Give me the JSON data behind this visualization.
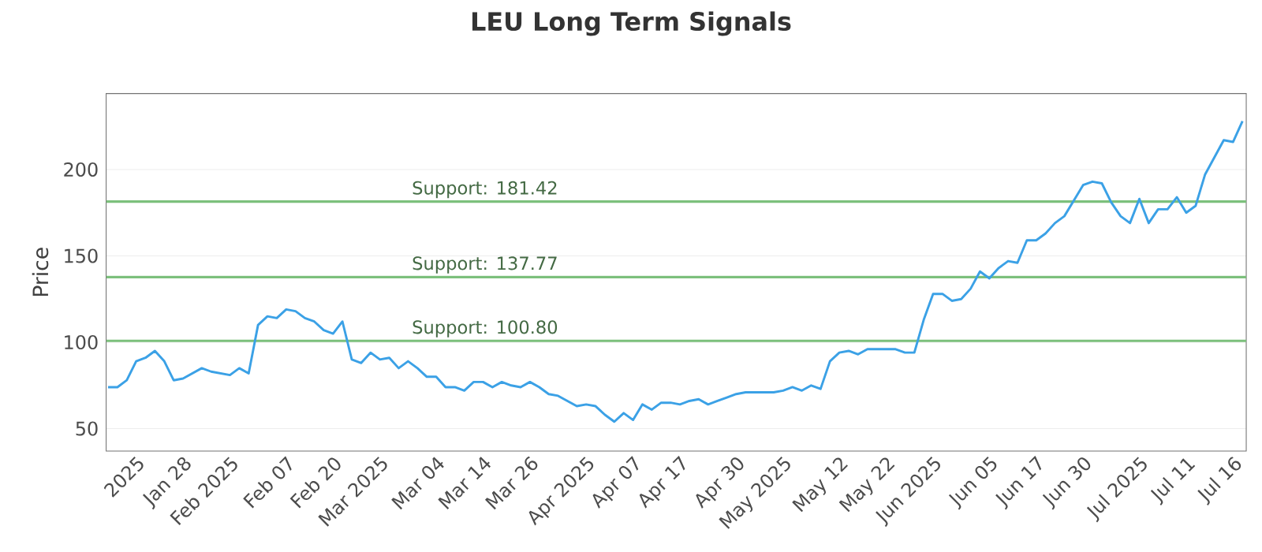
{
  "chart_data": {
    "type": "line",
    "title": "LEU Long Term Signals",
    "ylabel": "Price",
    "ylim": [
      37,
      244
    ],
    "yticks": [
      50,
      100,
      150,
      200
    ],
    "grid": "y",
    "marker": "none",
    "categories": [
      null,
      null,
      null,
      "2025",
      null,
      null,
      null,
      null,
      "Jan 28",
      null,
      null,
      null,
      null,
      "Feb 2025",
      null,
      null,
      null,
      null,
      null,
      "Feb 07",
      null,
      null,
      null,
      null,
      "Feb 20",
      null,
      null,
      null,
      null,
      "Mar 2025",
      null,
      null,
      null,
      null,
      null,
      "Mar 04",
      null,
      null,
      null,
      null,
      "Mar 14",
      null,
      null,
      null,
      null,
      "Mar 26",
      null,
      null,
      null,
      null,
      null,
      "Apr 2025",
      null,
      null,
      null,
      null,
      "Apr 07",
      null,
      null,
      null,
      null,
      "Apr 17",
      null,
      null,
      null,
      null,
      null,
      "Apr 30",
      null,
      null,
      null,
      null,
      "May 2025",
      null,
      null,
      null,
      null,
      null,
      "May 12",
      null,
      null,
      null,
      null,
      "May 22",
      null,
      null,
      null,
      null,
      "Jun 2025",
      null,
      null,
      null,
      null,
      null,
      "Jun 05",
      null,
      null,
      null,
      null,
      "Jun 17",
      null,
      null,
      null,
      null,
      "Jun 30",
      null,
      null,
      null,
      null,
      null,
      "Jul 2025",
      null,
      null,
      null,
      null,
      "Jul 11",
      null,
      null,
      null,
      null,
      "Jul 16",
      null
    ],
    "ref_lines": [
      {
        "axis": "y",
        "value": 181.42,
        "label": "Support: 181.42",
        "color": "#7cc07c"
      },
      {
        "axis": "y",
        "value": 137.77,
        "label": "Support: 137.77",
        "color": "#7cc07c"
      },
      {
        "axis": "y",
        "value": 100.8,
        "label": "Support: 100.80",
        "color": "#7cc07c"
      }
    ],
    "series": [
      {
        "color": "#3ba1e6",
        "values": [
          74,
          74,
          78,
          89,
          91,
          95,
          89,
          78,
          79,
          82,
          85,
          83,
          82,
          81,
          85,
          82,
          110,
          115,
          114,
          119,
          118,
          114,
          112,
          107,
          105,
          112,
          90,
          88,
          94,
          90,
          91,
          85,
          89,
          85,
          80,
          80,
          74,
          74,
          72,
          77,
          77,
          74,
          77,
          75,
          74,
          77,
          74,
          70,
          69,
          66,
          63,
          64,
          63,
          58,
          54,
          59,
          55,
          64,
          61,
          65,
          65,
          64,
          66,
          67,
          64,
          66,
          68,
          70,
          71,
          71,
          71,
          71,
          72,
          74,
          72,
          75,
          73,
          89,
          94,
          95,
          93,
          96,
          96,
          96,
          96,
          94,
          94,
          113,
          128,
          128,
          124,
          125,
          131,
          141,
          137,
          143,
          147,
          146,
          159,
          159,
          163,
          169,
          173,
          182,
          191,
          193,
          192,
          181,
          173,
          169,
          183,
          169,
          177,
          177,
          184,
          175,
          179,
          197,
          207,
          217,
          216,
          228
        ]
      }
    ]
  }
}
